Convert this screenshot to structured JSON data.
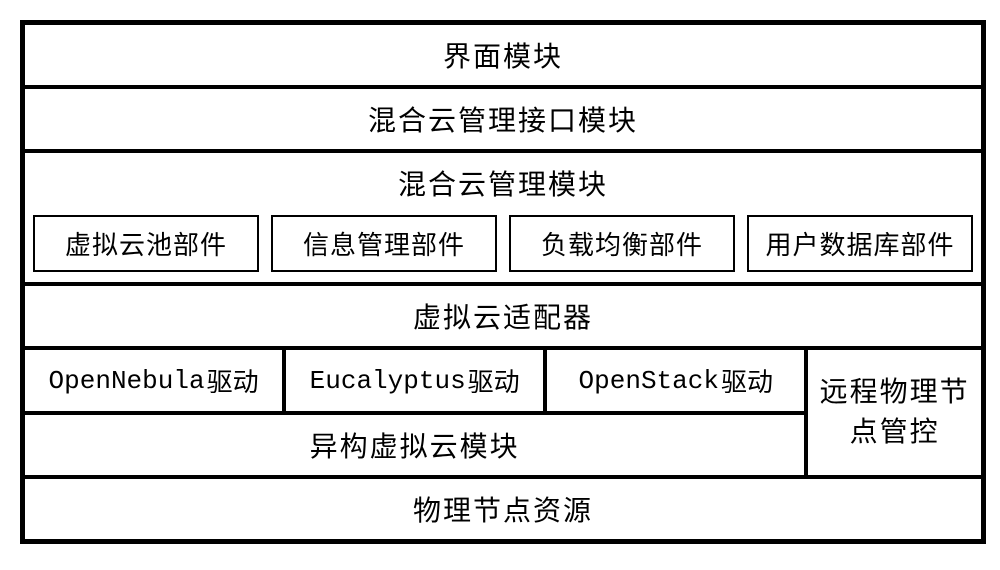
{
  "layers": {
    "ui_module": "界面模块",
    "api_module": "混合云管理接口模块",
    "mgmt_module": {
      "title": "混合云管理模块",
      "components": [
        "虚拟云池部件",
        "信息管理部件",
        "负载均衡部件",
        "用户数据库部件"
      ]
    },
    "adapter": "虚拟云适配器",
    "drivers": {
      "opennebula": {
        "en": "OpenNebula",
        "cn": "驱动"
      },
      "eucalyptus": {
        "en": "Eucalyptus",
        "cn": "驱动"
      },
      "openstack": {
        "en": "OpenStack",
        "cn": "驱动"
      }
    },
    "hetero_module": "异构虚拟云模块",
    "remote_control": "远程物理节点管控",
    "physical": "物理节点资源"
  },
  "style": {
    "border_color": "#000000",
    "background": "#ffffff",
    "font_main": "KaiTi",
    "font_mono": "Courier New",
    "title_fontsize": 28,
    "component_fontsize": 26
  }
}
